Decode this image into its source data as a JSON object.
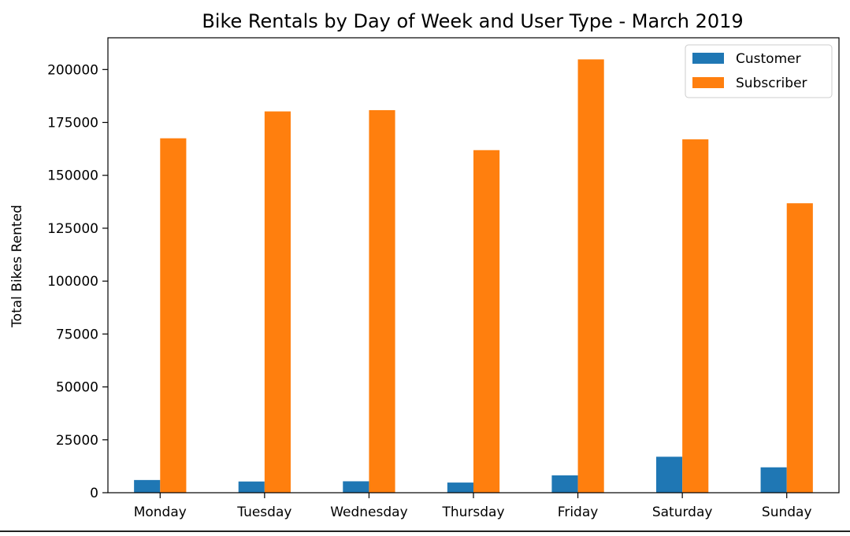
{
  "chart_data": {
    "type": "bar",
    "title": "Bike Rentals by Day of Week and User Type - March 2019",
    "xlabel": "",
    "ylabel": "Total Bikes Rented",
    "categories": [
      "Monday",
      "Tuesday",
      "Wednesday",
      "Thursday",
      "Friday",
      "Saturday",
      "Sunday"
    ],
    "series": [
      {
        "name": "Customer",
        "color": "#1f77b4",
        "values": [
          6000,
          5300,
          5400,
          4800,
          8200,
          17000,
          12000
        ]
      },
      {
        "name": "Subscriber",
        "color": "#ff7f0e",
        "values": [
          167500,
          180200,
          180800,
          161900,
          204800,
          167000,
          136800
        ]
      }
    ],
    "ylim": [
      0,
      215000
    ],
    "yticks": [
      0,
      25000,
      50000,
      75000,
      100000,
      125000,
      150000,
      175000,
      200000
    ],
    "grid": false,
    "legend_position": "top-right"
  }
}
